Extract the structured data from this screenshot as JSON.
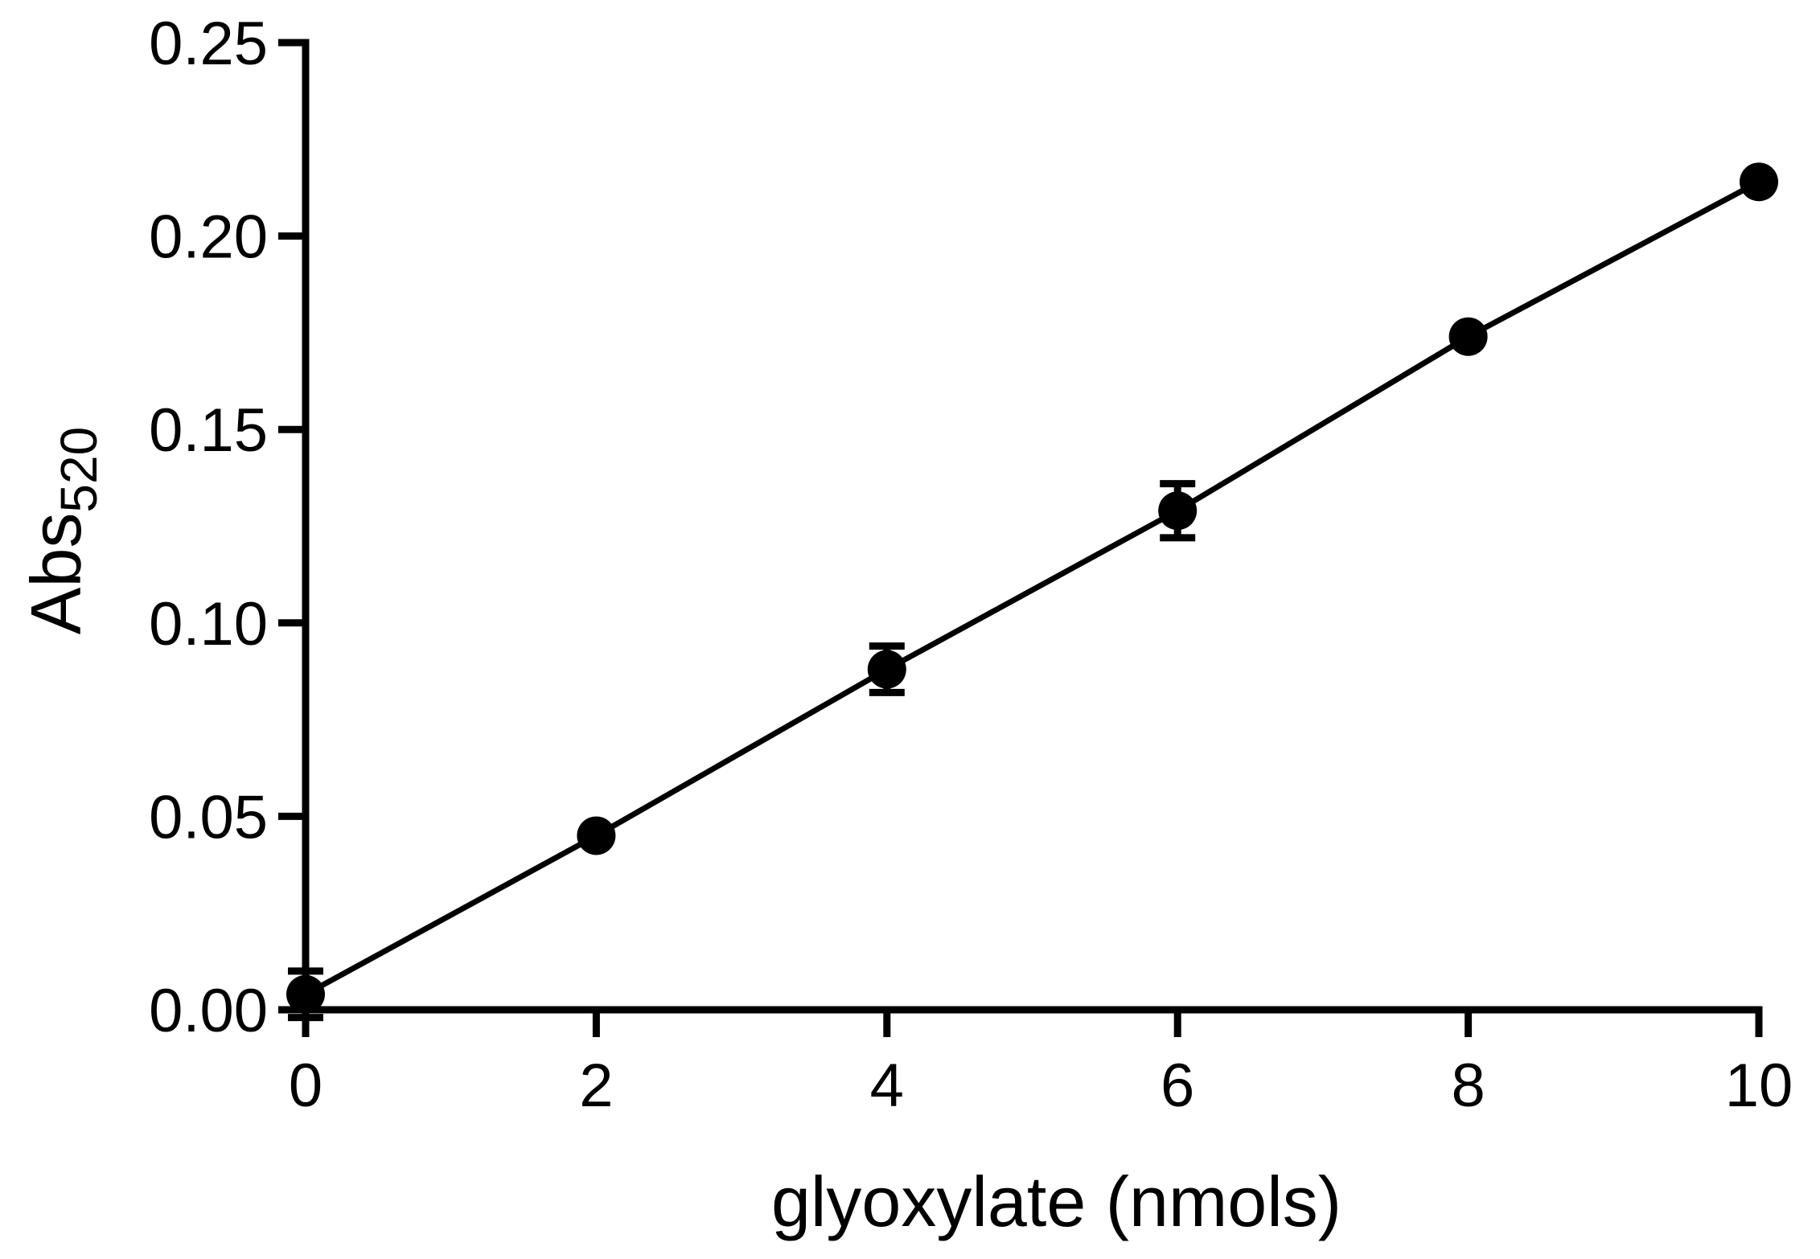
{
  "chart_data": {
    "type": "line",
    "title": "",
    "xlabel": "glyoxylate (nmols)",
    "ylabel": {
      "main": "Abs",
      "subscript": "520"
    },
    "xlim": [
      0,
      10
    ],
    "ylim": [
      0,
      0.25
    ],
    "x_ticks": [
      "0",
      "2",
      "4",
      "6",
      "8",
      "10"
    ],
    "x_tick_values": [
      0,
      2,
      4,
      6,
      8,
      10
    ],
    "y_ticks": [
      "0.00",
      "0.05",
      "0.10",
      "0.15",
      "0.20",
      "0.25"
    ],
    "y_tick_values": [
      0,
      0.05,
      0.1,
      0.15,
      0.2,
      0.25
    ],
    "grid": false,
    "legend": "none",
    "series": [
      {
        "x": [
          0,
          2,
          4,
          6,
          8,
          10
        ],
        "y": [
          0.004,
          0.045,
          0.088,
          0.129,
          0.174,
          0.214
        ],
        "error": [
          0.006,
          0.001,
          0.006,
          0.007,
          0.001,
          0.001
        ],
        "color": "#000000",
        "marker": "circle"
      }
    ]
  }
}
